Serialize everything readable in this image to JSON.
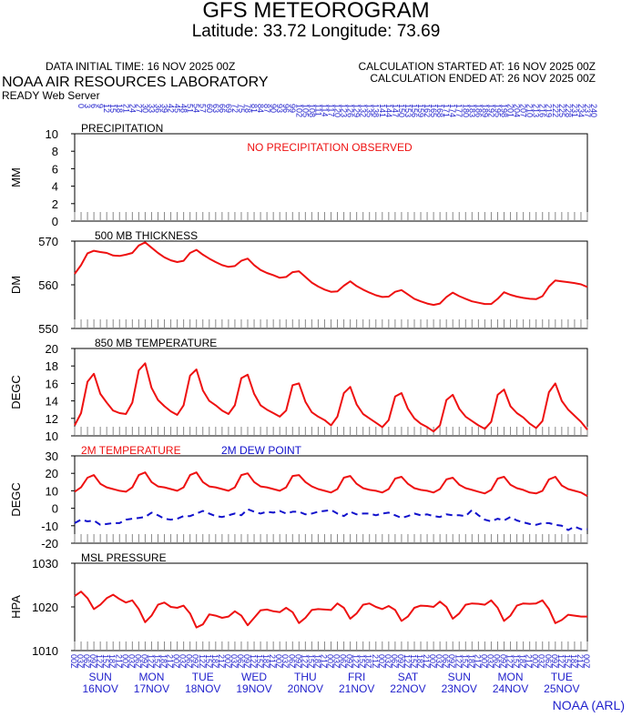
{
  "header": {
    "title": "GFS METEOROGRAM",
    "subtitle": "Latitude: 33.72 Longitude:  73.69",
    "init_time": "DATA INITIAL TIME: 16 NOV 2025 00Z",
    "calc_started": "CALCULATION STARTED AT: 16 NOV 2025 00Z",
    "calc_ended": "CALCULATION ENDED AT: 26 NOV 2025 00Z",
    "lab": "NOAA AIR RESOURCES LABORATORY",
    "server": "READY Web Server",
    "credit": "NOAA (ARL)"
  },
  "colors": {
    "temp": "#ee1111",
    "dew": "#1111cc",
    "axis_text": "#1f1fcc",
    "tick": "#888888"
  },
  "forecast_hours": [
    "0",
    "3",
    "6",
    "9",
    "12",
    "15",
    "18",
    "21",
    "24",
    "27",
    "30",
    "33",
    "36",
    "39",
    "42",
    "45",
    "48",
    "51",
    "54",
    "57",
    "60",
    "63",
    "66",
    "69",
    "72",
    "75",
    "78",
    "81",
    "84",
    "87",
    "90",
    "93",
    "96",
    "99",
    "102",
    "105",
    "108",
    "111",
    "114",
    "117",
    "120",
    "123",
    "126",
    "129",
    "132",
    "135",
    "138",
    "141",
    "144",
    "147",
    "150",
    "153",
    "156",
    "159",
    "162",
    "165",
    "168",
    "171",
    "174",
    "177",
    "180",
    "183",
    "186",
    "189",
    "192",
    "195",
    "198",
    "201",
    "204",
    "207",
    "210",
    "213",
    "216",
    "219",
    "222",
    "225",
    "228",
    "231",
    "234",
    "237",
    "240"
  ],
  "utc_labels": [
    "00Z",
    "03Z",
    "06Z",
    "09Z",
    "12Z",
    "15Z",
    "18Z",
    "21Z",
    "00Z",
    "03Z",
    "06Z",
    "09Z",
    "12Z",
    "15Z",
    "18Z",
    "21Z",
    "00Z",
    "03Z",
    "06Z",
    "09Z",
    "12Z",
    "15Z",
    "18Z",
    "21Z",
    "00Z",
    "03Z",
    "06Z",
    "09Z",
    "12Z",
    "15Z",
    "18Z",
    "21Z",
    "00Z",
    "03Z",
    "06Z",
    "09Z",
    "12Z",
    "15Z",
    "18Z",
    "21Z",
    "00Z",
    "03Z",
    "06Z",
    "09Z",
    "12Z",
    "15Z",
    "18Z",
    "21Z",
    "00Z",
    "03Z",
    "06Z",
    "09Z",
    "12Z",
    "15Z",
    "18Z",
    "21Z",
    "00Z",
    "03Z",
    "06Z",
    "09Z",
    "12Z",
    "15Z",
    "18Z",
    "21Z",
    "00Z",
    "03Z",
    "06Z",
    "09Z",
    "12Z",
    "15Z",
    "18Z",
    "21Z",
    "00Z",
    "03Z",
    "06Z",
    "09Z",
    "12Z",
    "15Z",
    "18Z",
    "21Z",
    "00Z"
  ],
  "days": [
    {
      "dow": "SUN",
      "date": "16NOV"
    },
    {
      "dow": "MON",
      "date": "17NOV"
    },
    {
      "dow": "TUE",
      "date": "18NOV"
    },
    {
      "dow": "WED",
      "date": "19NOV"
    },
    {
      "dow": "THU",
      "date": "20NOV"
    },
    {
      "dow": "FRI",
      "date": "21NOV"
    },
    {
      "dow": "SAT",
      "date": "22NOV"
    },
    {
      "dow": "SUN",
      "date": "23NOV"
    },
    {
      "dow": "MON",
      "date": "24NOV"
    },
    {
      "dow": "TUE",
      "date": "25NOV"
    }
  ],
  "chart_data": [
    {
      "type": "line",
      "title": "PRECIPITATION",
      "ylabel": "MM",
      "ylim": [
        0,
        10
      ],
      "yticks": [
        0,
        2,
        4,
        6,
        8,
        10
      ],
      "annotation": "NO PRECIPITATION OBSERVED",
      "series": []
    },
    {
      "type": "line",
      "title": "500 MB  THICKNESS",
      "ylabel": "DM",
      "ylim": [
        550,
        570
      ],
      "yticks": [
        550,
        560,
        570
      ],
      "series": [
        {
          "color": "#ee1111",
          "values": [
            562.5,
            564.5,
            567.2,
            567.8,
            567.5,
            567.3,
            566.7,
            566.6,
            566.9,
            567.3,
            569.0,
            569.7,
            568.5,
            567.3,
            566.3,
            565.6,
            565.2,
            565.5,
            567.3,
            568.0,
            566.9,
            566.0,
            565.2,
            564.5,
            564.1,
            564.3,
            565.5,
            566.0,
            564.5,
            563.4,
            562.7,
            562.2,
            561.6,
            561.8,
            562.9,
            563.1,
            561.8,
            560.5,
            559.6,
            558.9,
            558.4,
            558.5,
            559.8,
            560.8,
            559.7,
            558.9,
            558.2,
            557.6,
            557.2,
            557.3,
            558.4,
            558.8,
            557.8,
            556.8,
            556.2,
            555.7,
            555.4,
            555.7,
            557.2,
            558.2,
            557.4,
            556.8,
            556.2,
            555.9,
            555.6,
            555.6,
            556.8,
            558.3,
            557.7,
            557.3,
            557.0,
            556.8,
            556.7,
            557.4,
            559.6,
            561.0,
            560.8,
            560.6,
            560.4,
            560.1,
            559.5
          ]
        }
      ]
    },
    {
      "type": "line",
      "title": "850 MB  TEMPERATURE",
      "ylabel": "DEGC",
      "ylim": [
        10,
        20
      ],
      "yticks": [
        10,
        12,
        14,
        16,
        18,
        20
      ],
      "series": [
        {
          "color": "#ee1111",
          "values": [
            11.2,
            12.6,
            16.2,
            17.1,
            14.8,
            13.8,
            12.9,
            12.6,
            12.5,
            13.8,
            17.5,
            18.3,
            15.5,
            14.1,
            13.4,
            12.8,
            12.4,
            13.5,
            16.9,
            17.6,
            15.2,
            14.0,
            13.5,
            12.9,
            12.5,
            13.5,
            16.6,
            17.0,
            14.8,
            13.5,
            13.0,
            12.6,
            12.2,
            12.9,
            15.8,
            16.0,
            13.9,
            12.7,
            12.2,
            11.8,
            11.2,
            12.2,
            14.9,
            15.6,
            13.6,
            12.5,
            12.0,
            11.5,
            11.0,
            11.8,
            14.5,
            14.9,
            13.1,
            12.0,
            11.4,
            11.0,
            10.5,
            11.2,
            14.1,
            14.7,
            13.1,
            12.2,
            11.7,
            11.2,
            10.8,
            11.6,
            14.7,
            15.3,
            13.4,
            12.6,
            12.1,
            11.4,
            10.9,
            11.7,
            15.0,
            16.0,
            14.0,
            13.0,
            12.3,
            11.6,
            10.7
          ]
        }
      ]
    },
    {
      "type": "line",
      "title": "2M TEMPERATURE",
      "title2": "2M  DEW POINT",
      "ylabel": "DEGC",
      "ylim": [
        -20,
        30
      ],
      "yticks": [
        -20,
        -10,
        0,
        10,
        20,
        30
      ],
      "series": [
        {
          "name": "2M TEMPERATURE",
          "color": "#ee1111",
          "values": [
            9.5,
            12,
            17.5,
            19,
            14,
            12,
            11,
            10,
            9.5,
            12,
            19,
            20.5,
            15,
            12.5,
            12,
            11,
            10,
            12,
            19,
            20.5,
            15,
            12.5,
            12,
            11,
            10,
            12,
            19,
            20,
            15,
            12.5,
            12,
            11,
            10,
            12,
            18.5,
            19,
            15,
            12.5,
            11,
            10,
            9,
            11,
            17.5,
            18.5,
            14,
            11.5,
            10.5,
            10,
            9,
            11,
            17,
            18,
            14,
            11.5,
            10.5,
            10,
            9,
            11,
            16.5,
            17.5,
            13.5,
            11.5,
            10.5,
            9.5,
            8.5,
            10.5,
            17,
            18,
            13.5,
            11.5,
            10.5,
            9,
            8.5,
            10,
            16.5,
            18,
            13,
            11,
            10,
            9,
            7
          ]
        },
        {
          "name": "2M  DEW POINT",
          "color": "#1111cc",
          "dashed": true,
          "values": [
            -8.5,
            -6.5,
            -7.5,
            -7,
            -9.5,
            -9,
            -8.5,
            -8.5,
            -6.5,
            -6,
            -5.5,
            -5,
            -2.5,
            -4,
            -6,
            -6.5,
            -6,
            -4.5,
            -4.5,
            -3,
            -1.5,
            -3,
            -4.5,
            -5,
            -4,
            -3,
            -4,
            -0.5,
            -2,
            -3,
            -2,
            -2.5,
            -1.5,
            -3,
            -2,
            -2,
            -3.5,
            -3,
            -2,
            -1.5,
            -1,
            -3,
            -4.5,
            -2,
            -3.5,
            -3,
            -3,
            -4,
            -3,
            -2.5,
            -4,
            -5.5,
            -4.5,
            -3,
            -4,
            -3.5,
            -4.5,
            -5,
            -3.5,
            -4,
            -4,
            -4.5,
            -1,
            -4,
            -6.5,
            -7.5,
            -6,
            -7,
            -5,
            -7,
            -8,
            -9,
            -9.5,
            -8.5,
            -8.5,
            -9.5,
            -10,
            -12.5,
            -10.5,
            -12,
            -12
          ]
        }
      ]
    },
    {
      "type": "line",
      "title": "MSL PRESSURE",
      "ylabel": "HPA",
      "ylim": [
        1010,
        1030
      ],
      "yticks": [
        1010,
        1020,
        1030
      ],
      "series": [
        {
          "color": "#ee1111",
          "values": [
            1022.5,
            1023.5,
            1022.0,
            1019.5,
            1020.5,
            1022.0,
            1022.8,
            1021.8,
            1021.0,
            1021.5,
            1019.5,
            1016.5,
            1018.0,
            1020.5,
            1021.0,
            1020.0,
            1019.8,
            1020.3,
            1018.5,
            1015.3,
            1016.0,
            1018.3,
            1018.0,
            1017.5,
            1017.8,
            1019.0,
            1018.0,
            1015.8,
            1017.5,
            1019.2,
            1019.4,
            1019.0,
            1018.8,
            1019.8,
            1018.8,
            1016.3,
            1017.5,
            1019.3,
            1019.5,
            1019.4,
            1019.3,
            1020.8,
            1019.8,
            1017.3,
            1018.5,
            1020.5,
            1020.8,
            1020.0,
            1019.5,
            1020.2,
            1019.3,
            1016.8,
            1017.8,
            1019.8,
            1020.3,
            1020.2,
            1020.0,
            1021.2,
            1020.0,
            1017.3,
            1018.5,
            1020.5,
            1020.8,
            1020.7,
            1020.5,
            1021.5,
            1019.8,
            1016.8,
            1018.0,
            1020.3,
            1020.8,
            1020.7,
            1020.8,
            1021.5,
            1019.5,
            1016.3,
            1017.0,
            1018.2,
            1018.0,
            1017.8,
            1017.8
          ]
        }
      ]
    }
  ]
}
